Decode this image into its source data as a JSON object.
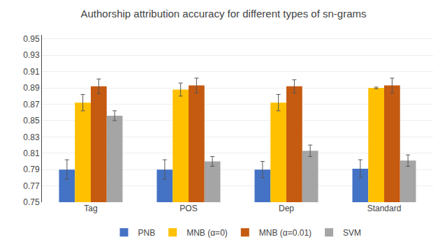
{
  "chart_data": {
    "type": "bar",
    "title": "Authorship attribution accuracy for different types of sn-grams",
    "categories": [
      "Tag",
      "POS",
      "Dep",
      "Standard"
    ],
    "series": [
      {
        "name": "PNB",
        "color": "#4472C4",
        "values": [
          0.79,
          0.79,
          0.79,
          0.791
        ],
        "errors": [
          0.012,
          0.012,
          0.01,
          0.011
        ]
      },
      {
        "name": "MNB (α=0)",
        "color": "#FFC000",
        "values": [
          0.872,
          0.888,
          0.872,
          0.89
        ],
        "errors": [
          0.01,
          0.008,
          0.01,
          0.001
        ]
      },
      {
        "name": "MNB (α=0.01)",
        "color": "#C55A11",
        "values": [
          0.892,
          0.893,
          0.892,
          0.893
        ],
        "errors": [
          0.009,
          0.009,
          0.008,
          0.009
        ]
      },
      {
        "name": "SVM",
        "color": "#A5A5A5",
        "values": [
          0.856,
          0.8,
          0.813,
          0.801
        ],
        "errors": [
          0.006,
          0.006,
          0.007,
          0.007
        ]
      }
    ],
    "ylim": [
      0.75,
      0.955
    ],
    "yticks": [
      0.75,
      0.77,
      0.79,
      0.81,
      0.83,
      0.85,
      0.87,
      0.89,
      0.91,
      0.93,
      0.95
    ],
    "grid": true,
    "legend": "bottom"
  }
}
